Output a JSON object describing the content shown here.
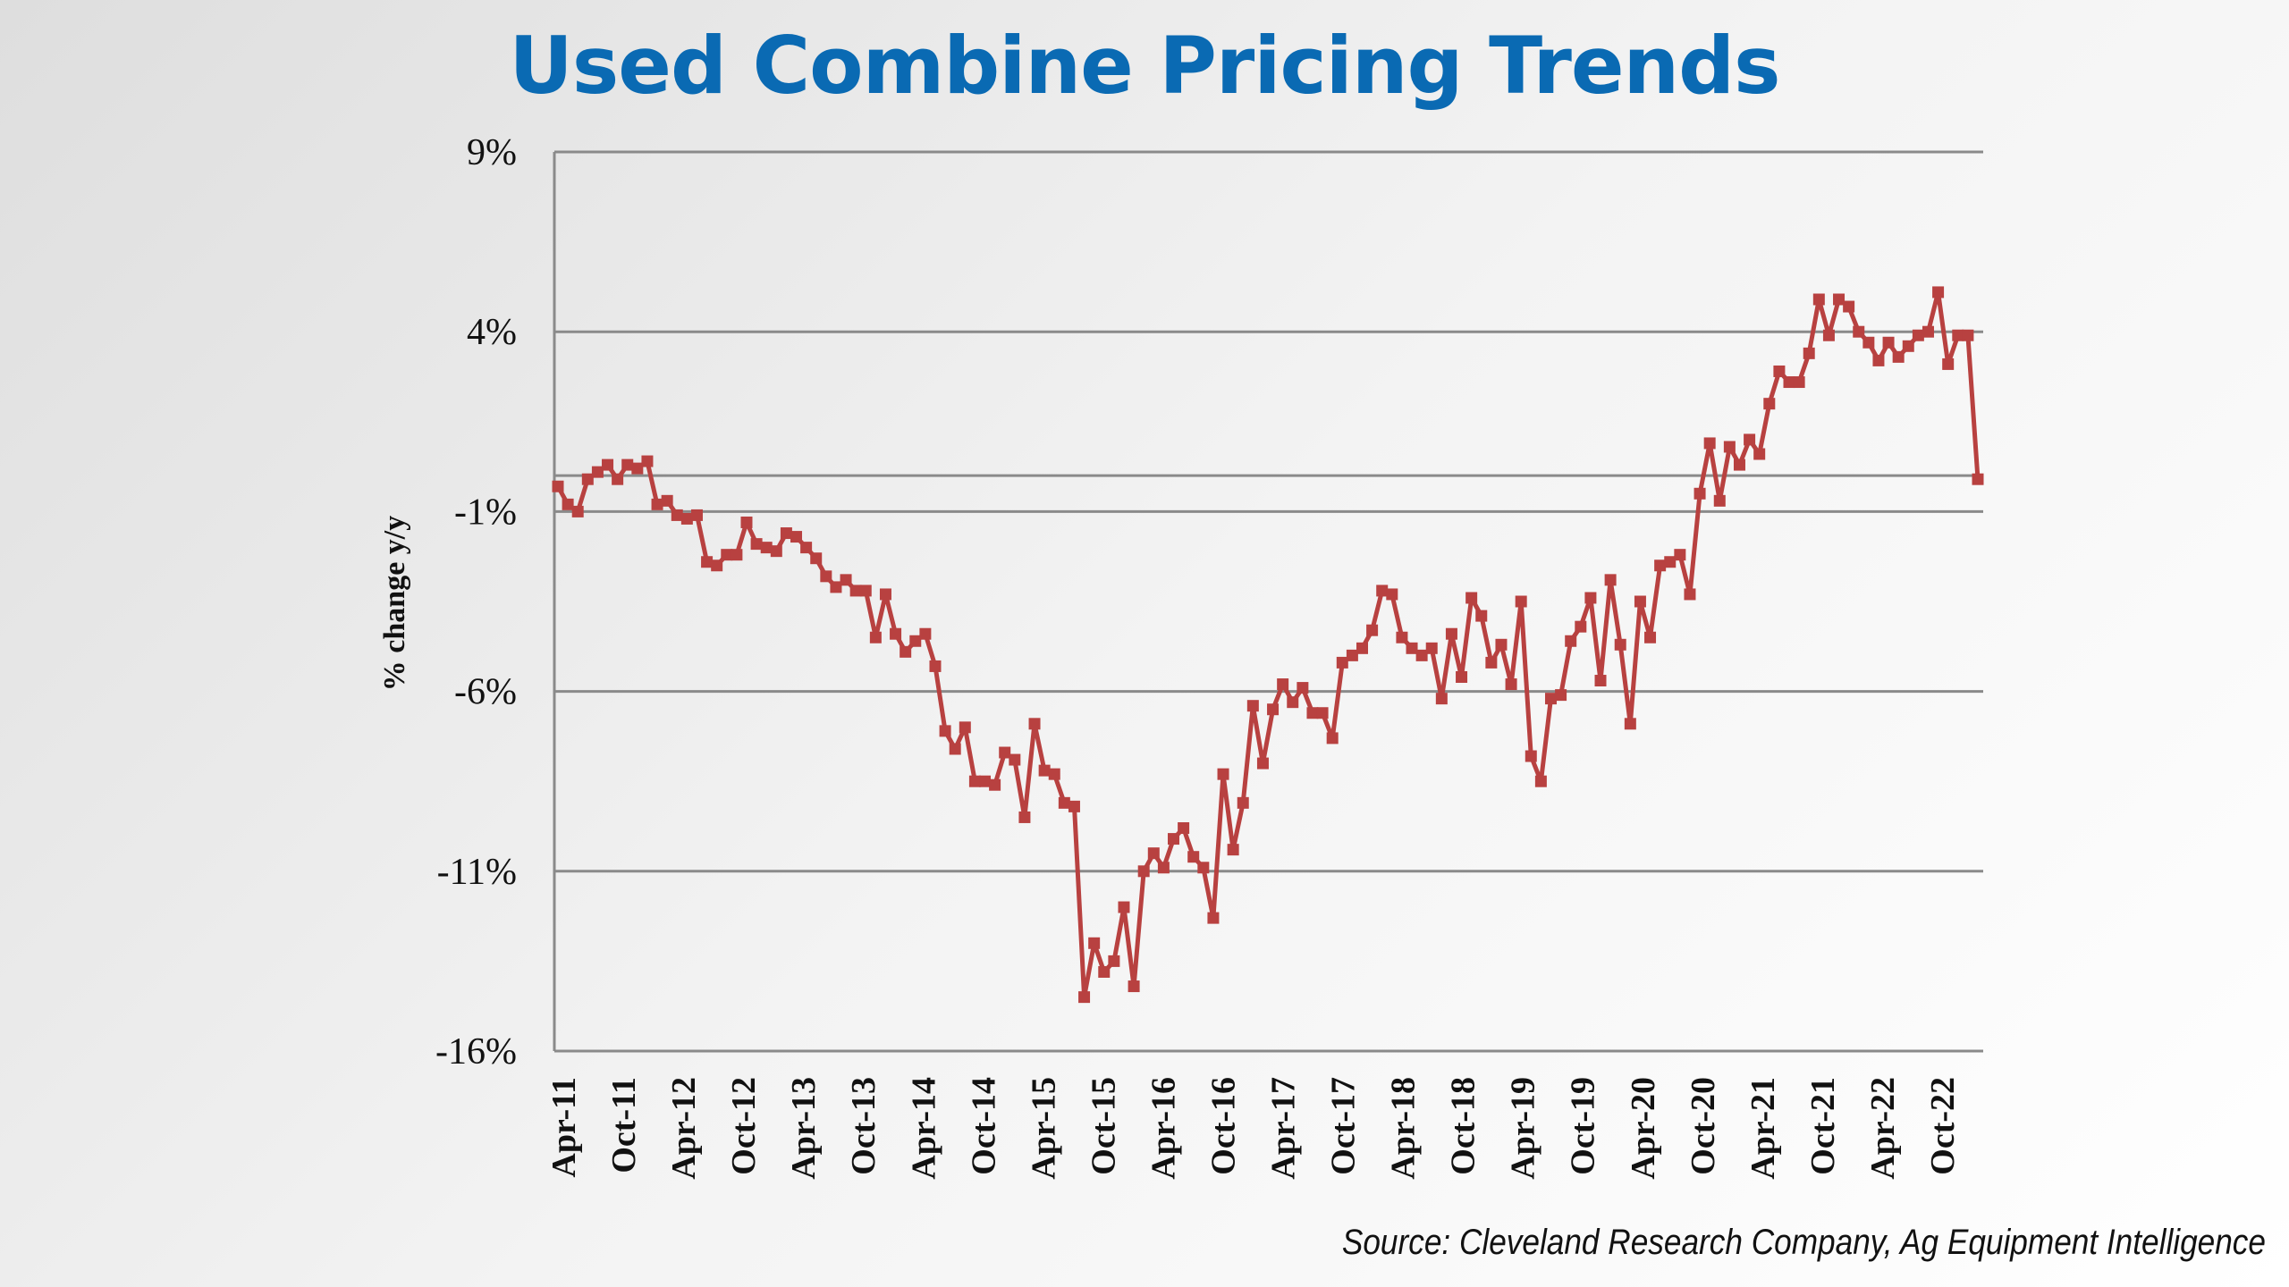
{
  "chart_data": {
    "type": "line",
    "title": "Used Combine Pricing Trends",
    "ylabel": "% change y/y",
    "xlabel": "",
    "source": "Source: Cleveland Research Company, Ag Equipment Intelligence",
    "ylim": [
      -16,
      9
    ],
    "yticks": [
      9,
      4,
      -1,
      -6,
      -11,
      -16
    ],
    "ytick_labels": [
      "9%",
      "4%",
      "-1%",
      "-6%",
      "-11%",
      "-16%"
    ],
    "xtick_labels": [
      "Apr-11",
      "Oct-11",
      "Apr-12",
      "Oct-12",
      "Apr-13",
      "Oct-13",
      "Apr-14",
      "Oct-14",
      "Apr-15",
      "Oct-15",
      "Apr-16",
      "Oct-16",
      "Apr-17",
      "Oct-17",
      "Apr-18",
      "Oct-18",
      "Apr-19",
      "Oct-19",
      "Apr-20",
      "Oct-20",
      "Apr-21",
      "Oct-21",
      "Apr-22",
      "Oct-22"
    ],
    "grid": true,
    "line_color": "#b84140",
    "series": [
      {
        "name": "",
        "values": [
          -0.3,
          -0.8,
          -1.0,
          -0.1,
          0.1,
          0.3,
          -0.1,
          0.3,
          0.2,
          0.4,
          -0.8,
          -0.7,
          -1.1,
          -1.2,
          -1.1,
          -2.4,
          -2.5,
          -2.2,
          -2.2,
          -1.3,
          -1.9,
          -2.0,
          -2.1,
          -1.6,
          -1.7,
          -2.0,
          -2.3,
          -2.8,
          -3.1,
          -2.9,
          -3.2,
          -3.2,
          -4.5,
          -3.3,
          -4.4,
          -4.9,
          -4.6,
          -4.4,
          -5.3,
          -7.1,
          -7.6,
          -7.0,
          -8.5,
          -8.5,
          -8.6,
          -7.7,
          -7.9,
          -9.5,
          -6.9,
          -8.2,
          -8.3,
          -9.1,
          -9.2,
          -14.5,
          -13.0,
          -13.8,
          -13.5,
          -12.0,
          -14.2,
          -11.0,
          -10.5,
          -10.9,
          -10.1,
          -9.8,
          -10.6,
          -10.9,
          -12.3,
          -8.3,
          -10.4,
          -9.1,
          -6.4,
          -8.0,
          -6.5,
          -5.8,
          -6.3,
          -5.9,
          -6.6,
          -6.6,
          -7.3,
          -5.2,
          -5.0,
          -4.8,
          -4.3,
          -3.2,
          -3.3,
          -4.5,
          -4.8,
          -5.0,
          -4.8,
          -6.2,
          -4.4,
          -5.6,
          -3.4,
          -3.9,
          -5.2,
          -4.7,
          -5.8,
          -3.5,
          -7.8,
          -8.5,
          -6.2,
          -6.1,
          -4.6,
          -4.2,
          -3.4,
          -5.7,
          -2.9,
          -4.7,
          -6.9,
          -3.5,
          -4.5,
          -2.5,
          -2.4,
          -2.2,
          -3.3,
          -0.5,
          0.9,
          -0.7,
          0.8,
          0.3,
          1.0,
          0.6,
          2.0,
          2.9,
          2.6,
          2.6,
          3.4,
          4.9,
          3.9,
          4.9,
          4.7,
          4.0,
          3.7,
          3.2,
          3.7,
          3.3,
          3.6,
          3.9,
          4.0,
          5.1,
          3.1,
          3.9,
          3.9,
          -0.1
        ]
      }
    ]
  }
}
